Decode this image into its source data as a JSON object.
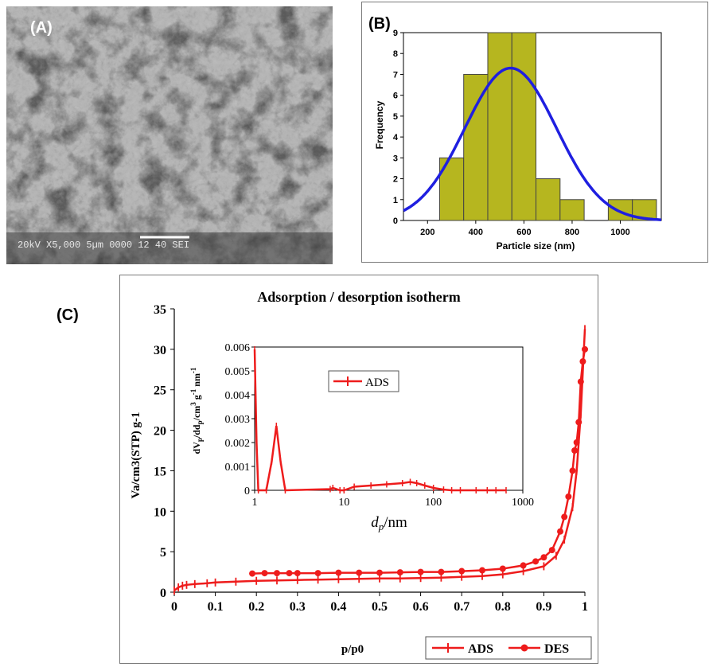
{
  "panel_a": {
    "label": "(A)",
    "scale_bar_text": "20kV  X5,000   5µm  0000 12 40 SEI"
  },
  "panel_b_label": "(B)",
  "panel_c_label": "(C)",
  "chart_data": [
    {
      "id": "histogram",
      "type": "bar",
      "title": "",
      "xlabel": "Particle size (nm)",
      "ylabel": "Frequency",
      "xlim": [
        100,
        1170
      ],
      "ylim": [
        0,
        9
      ],
      "xticks": [
        200,
        400,
        600,
        800,
        1000
      ],
      "yticks": [
        0,
        1,
        2,
        3,
        4,
        5,
        6,
        7,
        8,
        9
      ],
      "bin_width": 100,
      "bins": [
        {
          "x": 300,
          "value": 3
        },
        {
          "x": 400,
          "value": 7
        },
        {
          "x": 500,
          "value": 9
        },
        {
          "x": 600,
          "value": 9
        },
        {
          "x": 700,
          "value": 2
        },
        {
          "x": 800,
          "value": 1
        },
        {
          "x": 1000,
          "value": 1
        },
        {
          "x": 1100,
          "value": 1
        }
      ],
      "fit_curve": {
        "type": "normal",
        "peak": 7.3,
        "mean": 545,
        "sd": 190
      },
      "colors": {
        "bars": "#b6b61f",
        "bar_edge": "#444444",
        "curve": "#1f1fe0"
      }
    },
    {
      "id": "isotherm",
      "type": "line",
      "title": "Adsorption / desorption isotherm",
      "xlabel": "p/p0",
      "ylabel": "Va/cm3(STP) g-1",
      "xlim": [
        0,
        1
      ],
      "ylim": [
        0,
        35
      ],
      "xticks": [
        0,
        0.1,
        0.2,
        0.3,
        0.4,
        0.5,
        0.6,
        0.7,
        0.8,
        0.9,
        1
      ],
      "yticks": [
        0,
        5,
        10,
        15,
        20,
        25,
        30,
        35
      ],
      "series": [
        {
          "name": "ADS",
          "marker": "plus",
          "color": "#ee1c1c",
          "points": [
            [
              0,
              0.2
            ],
            [
              0.01,
              0.6
            ],
            [
              0.02,
              0.8
            ],
            [
              0.03,
              0.9
            ],
            [
              0.05,
              1.0
            ],
            [
              0.08,
              1.1
            ],
            [
              0.1,
              1.2
            ],
            [
              0.15,
              1.3
            ],
            [
              0.2,
              1.4
            ],
            [
              0.25,
              1.45
            ],
            [
              0.3,
              1.5
            ],
            [
              0.35,
              1.55
            ],
            [
              0.4,
              1.6
            ],
            [
              0.45,
              1.65
            ],
            [
              0.5,
              1.7
            ],
            [
              0.55,
              1.7
            ],
            [
              0.6,
              1.75
            ],
            [
              0.65,
              1.8
            ],
            [
              0.7,
              1.9
            ],
            [
              0.75,
              2.0
            ],
            [
              0.8,
              2.2
            ],
            [
              0.85,
              2.6
            ],
            [
              0.9,
              3.2
            ],
            [
              0.93,
              4.5
            ],
            [
              0.95,
              6.5
            ],
            [
              0.97,
              10.5
            ],
            [
              0.98,
              15.0
            ],
            [
              0.99,
              22.0
            ],
            [
              1.0,
              32.5
            ]
          ]
        },
        {
          "name": "DES",
          "marker": "circle",
          "color": "#ee1c1c",
          "points": [
            [
              0.19,
              2.3
            ],
            [
              0.22,
              2.35
            ],
            [
              0.25,
              2.35
            ],
            [
              0.28,
              2.35
            ],
            [
              0.3,
              2.35
            ],
            [
              0.35,
              2.35
            ],
            [
              0.4,
              2.4
            ],
            [
              0.45,
              2.4
            ],
            [
              0.5,
              2.4
            ],
            [
              0.55,
              2.45
            ],
            [
              0.6,
              2.5
            ],
            [
              0.65,
              2.5
            ],
            [
              0.7,
              2.6
            ],
            [
              0.75,
              2.7
            ],
            [
              0.8,
              2.9
            ],
            [
              0.85,
              3.3
            ],
            [
              0.88,
              3.8
            ],
            [
              0.9,
              4.3
            ],
            [
              0.92,
              5.2
            ],
            [
              0.94,
              7.5
            ],
            [
              0.95,
              9.3
            ],
            [
              0.96,
              11.8
            ],
            [
              0.97,
              15.0
            ],
            [
              0.975,
              17.5
            ],
            [
              0.98,
              18.5
            ],
            [
              0.985,
              21.0
            ],
            [
              0.99,
              26.0
            ],
            [
              0.995,
              28.5
            ],
            [
              1.0,
              30.0
            ]
          ]
        }
      ],
      "legend": "bottom-right"
    },
    {
      "id": "inset",
      "type": "line",
      "title": "",
      "xlabel": "dp/nm",
      "ylabel": "dVp/ddp/cm3 g-1 nm-1",
      "x_scale": "log",
      "xlim": [
        1,
        1000
      ],
      "ylim": [
        0,
        0.006
      ],
      "xticks": [
        1,
        10,
        100,
        1000
      ],
      "yticks": [
        0,
        0.001,
        0.002,
        0.003,
        0.004,
        0.005,
        0.006
      ],
      "series": [
        {
          "name": "ADS",
          "marker": "plus",
          "color": "#ee1c1c",
          "points": [
            [
              1.0,
              0.0059
            ],
            [
              1.05,
              0.002
            ],
            [
              1.1,
              0.0
            ],
            [
              1.35,
              0.0
            ],
            [
              1.55,
              0.0012
            ],
            [
              1.75,
              0.0027
            ],
            [
              1.95,
              0.0012
            ],
            [
              2.2,
              0.0
            ],
            [
              7.0,
              5e-05
            ],
            [
              7.5,
              0.0001
            ],
            [
              9.0,
              0.0
            ],
            [
              10.0,
              0.0
            ],
            [
              13.0,
              0.00015
            ],
            [
              20.0,
              0.0002
            ],
            [
              30.0,
              0.00025
            ],
            [
              45.0,
              0.0003
            ],
            [
              55.0,
              0.00035
            ],
            [
              65.0,
              0.0003
            ],
            [
              80.0,
              0.0002
            ],
            [
              100.0,
              0.0001
            ],
            [
              130.0,
              3e-05
            ],
            [
              160.0,
              0.0
            ],
            [
              200.0,
              0.0
            ],
            [
              300.0,
              0.0
            ],
            [
              400.0,
              0.0
            ],
            [
              500.0,
              0.0
            ],
            [
              650.0,
              0.0
            ]
          ]
        }
      ],
      "legend": "top-left"
    }
  ]
}
